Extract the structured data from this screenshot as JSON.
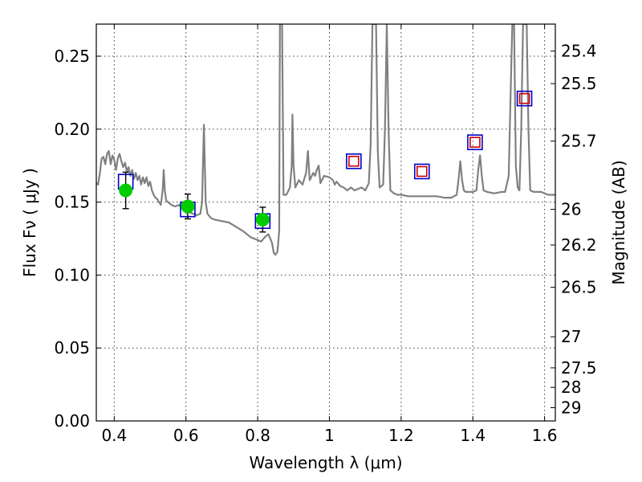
{
  "chart_data": {
    "type": "scatter",
    "xlabel": "Wavelength  λ (μm)",
    "ylabel": "Flux  Fν  ( μJy )",
    "ylabel_right": "Magnitude (AB)",
    "xlim": [
      0.35,
      1.63
    ],
    "ylim": [
      0.0,
      0.272
    ],
    "grid": true,
    "x_ticks": [
      {
        "value": 0.4,
        "label": "0.4"
      },
      {
        "value": 0.6,
        "label": "0.6"
      },
      {
        "value": 0.8,
        "label": "0.8"
      },
      {
        "value": 1.0,
        "label": "1"
      },
      {
        "value": 1.2,
        "label": "1.2"
      },
      {
        "value": 1.4,
        "label": "1.4"
      },
      {
        "value": 1.6,
        "label": "1.6"
      }
    ],
    "y_ticks": [
      {
        "value": 0.0,
        "label": "0.00"
      },
      {
        "value": 0.05,
        "label": "0.05"
      },
      {
        "value": 0.1,
        "label": "0.10"
      },
      {
        "value": 0.15,
        "label": "0.15"
      },
      {
        "value": 0.2,
        "label": "0.20"
      },
      {
        "value": 0.25,
        "label": "0.25"
      }
    ],
    "mag_ticks": [
      {
        "value": 0.2535,
        "label": "25.4"
      },
      {
        "value": 0.2312,
        "label": "25.5"
      },
      {
        "value": 0.1918,
        "label": "25.7"
      },
      {
        "value": 0.145,
        "label": "26"
      },
      {
        "value": 0.1206,
        "label": "26.2"
      },
      {
        "value": 0.0916,
        "label": "26.5"
      },
      {
        "value": 0.0577,
        "label": "27"
      },
      {
        "value": 0.0364,
        "label": "27.5"
      },
      {
        "value": 0.023,
        "label": "28"
      },
      {
        "value": 0.0091,
        "label": "29"
      }
    ],
    "series": [
      {
        "style": "line",
        "color": "#808080",
        "points": [
          [
            0.35,
            0.163
          ],
          [
            0.355,
            0.162
          ],
          [
            0.36,
            0.17
          ],
          [
            0.365,
            0.18
          ],
          [
            0.37,
            0.181
          ],
          [
            0.375,
            0.176
          ],
          [
            0.38,
            0.183
          ],
          [
            0.385,
            0.185
          ],
          [
            0.39,
            0.176
          ],
          [
            0.395,
            0.182
          ],
          [
            0.4,
            0.179
          ],
          [
            0.405,
            0.172
          ],
          [
            0.41,
            0.18
          ],
          [
            0.415,
            0.183
          ],
          [
            0.42,
            0.178
          ],
          [
            0.425,
            0.174
          ],
          [
            0.43,
            0.177
          ],
          [
            0.435,
            0.171
          ],
          [
            0.44,
            0.174
          ],
          [
            0.445,
            0.168
          ],
          [
            0.45,
            0.172
          ],
          [
            0.455,
            0.166
          ],
          [
            0.46,
            0.17
          ],
          [
            0.465,
            0.165
          ],
          [
            0.47,
            0.168
          ],
          [
            0.475,
            0.162
          ],
          [
            0.48,
            0.167
          ],
          [
            0.485,
            0.163
          ],
          [
            0.49,
            0.167
          ],
          [
            0.495,
            0.161
          ],
          [
            0.5,
            0.164
          ],
          [
            0.505,
            0.158
          ],
          [
            0.51,
            0.155
          ],
          [
            0.515,
            0.153
          ],
          [
            0.52,
            0.152
          ],
          [
            0.525,
            0.15
          ],
          [
            0.53,
            0.148
          ],
          [
            0.535,
            0.158
          ],
          [
            0.538,
            0.172
          ],
          [
            0.541,
            0.158
          ],
          [
            0.545,
            0.151
          ],
          [
            0.55,
            0.15
          ],
          [
            0.56,
            0.148
          ],
          [
            0.57,
            0.147
          ],
          [
            0.58,
            0.148
          ],
          [
            0.59,
            0.146
          ],
          [
            0.6,
            0.144
          ],
          [
            0.61,
            0.143
          ],
          [
            0.62,
            0.142
          ],
          [
            0.63,
            0.141
          ],
          [
            0.64,
            0.142
          ],
          [
            0.645,
            0.15
          ],
          [
            0.65,
            0.203
          ],
          [
            0.655,
            0.15
          ],
          [
            0.66,
            0.142
          ],
          [
            0.67,
            0.139
          ],
          [
            0.68,
            0.138
          ],
          [
            0.7,
            0.137
          ],
          [
            0.72,
            0.136
          ],
          [
            0.74,
            0.133
          ],
          [
            0.76,
            0.13
          ],
          [
            0.78,
            0.126
          ],
          [
            0.79,
            0.125
          ],
          [
            0.8,
            0.124
          ],
          [
            0.81,
            0.123
          ],
          [
            0.82,
            0.126
          ],
          [
            0.83,
            0.128
          ],
          [
            0.84,
            0.122
          ],
          [
            0.845,
            0.115
          ],
          [
            0.85,
            0.114
          ],
          [
            0.855,
            0.116
          ],
          [
            0.86,
            0.13
          ],
          [
            0.862,
            0.272
          ],
          [
            0.868,
            0.272
          ],
          [
            0.872,
            0.155
          ],
          [
            0.88,
            0.155
          ],
          [
            0.89,
            0.16
          ],
          [
            0.895,
            0.175
          ],
          [
            0.897,
            0.21
          ],
          [
            0.9,
            0.175
          ],
          [
            0.905,
            0.16
          ],
          [
            0.915,
            0.165
          ],
          [
            0.925,
            0.162
          ],
          [
            0.935,
            0.17
          ],
          [
            0.94,
            0.185
          ],
          [
            0.945,
            0.165
          ],
          [
            0.955,
            0.17
          ],
          [
            0.96,
            0.168
          ],
          [
            0.965,
            0.172
          ],
          [
            0.97,
            0.175
          ],
          [
            0.975,
            0.163
          ],
          [
            0.985,
            0.168
          ],
          [
            1.0,
            0.167
          ],
          [
            1.01,
            0.165
          ],
          [
            1.015,
            0.162
          ],
          [
            1.02,
            0.164
          ],
          [
            1.03,
            0.161
          ],
          [
            1.04,
            0.16
          ],
          [
            1.05,
            0.158
          ],
          [
            1.06,
            0.16
          ],
          [
            1.07,
            0.158
          ],
          [
            1.08,
            0.159
          ],
          [
            1.09,
            0.16
          ],
          [
            1.1,
            0.158
          ],
          [
            1.11,
            0.163
          ],
          [
            1.115,
            0.19
          ],
          [
            1.12,
            0.272
          ],
          [
            1.13,
            0.272
          ],
          [
            1.135,
            0.185
          ],
          [
            1.14,
            0.16
          ],
          [
            1.15,
            0.162
          ],
          [
            1.155,
            0.2
          ],
          [
            1.16,
            0.272
          ],
          [
            1.165,
            0.2
          ],
          [
            1.17,
            0.158
          ],
          [
            1.18,
            0.156
          ],
          [
            1.19,
            0.155
          ],
          [
            1.2,
            0.155
          ],
          [
            1.22,
            0.154
          ],
          [
            1.24,
            0.154
          ],
          [
            1.26,
            0.154
          ],
          [
            1.28,
            0.154
          ],
          [
            1.3,
            0.154
          ],
          [
            1.32,
            0.153
          ],
          [
            1.34,
            0.153
          ],
          [
            1.355,
            0.155
          ],
          [
            1.36,
            0.165
          ],
          [
            1.365,
            0.178
          ],
          [
            1.37,
            0.165
          ],
          [
            1.375,
            0.158
          ],
          [
            1.38,
            0.157
          ],
          [
            1.39,
            0.157
          ],
          [
            1.4,
            0.157
          ],
          [
            1.41,
            0.158
          ],
          [
            1.415,
            0.172
          ],
          [
            1.42,
            0.182
          ],
          [
            1.425,
            0.168
          ],
          [
            1.43,
            0.158
          ],
          [
            1.44,
            0.157
          ],
          [
            1.46,
            0.156
          ],
          [
            1.48,
            0.157
          ],
          [
            1.49,
            0.157
          ],
          [
            1.5,
            0.168
          ],
          [
            1.505,
            0.22
          ],
          [
            1.51,
            0.272
          ],
          [
            1.515,
            0.272
          ],
          [
            1.52,
            0.175
          ],
          [
            1.525,
            0.16
          ],
          [
            1.53,
            0.158
          ],
          [
            1.535,
            0.2
          ],
          [
            1.54,
            0.272
          ],
          [
            1.545,
            0.272
          ],
          [
            1.55,
            0.272
          ],
          [
            1.555,
            0.2
          ],
          [
            1.56,
            0.158
          ],
          [
            1.57,
            0.157
          ],
          [
            1.58,
            0.157
          ],
          [
            1.59,
            0.157
          ],
          [
            1.6,
            0.156
          ],
          [
            1.61,
            0.155
          ],
          [
            1.62,
            0.155
          ],
          [
            1.63,
            0.155
          ]
        ]
      },
      {
        "style": "open-square",
        "color": "#0000cc",
        "points": [
          [
            0.432,
            0.164
          ],
          [
            0.605,
            0.145
          ],
          [
            0.814,
            0.137
          ],
          [
            1.068,
            0.178
          ],
          [
            1.258,
            0.171
          ],
          [
            1.406,
            0.191
          ],
          [
            1.544,
            0.221
          ]
        ]
      },
      {
        "style": "open-square",
        "color": "#cc0000",
        "points": [
          [
            1.068,
            0.178
          ],
          [
            1.258,
            0.171
          ],
          [
            1.406,
            0.191
          ],
          [
            1.544,
            0.221
          ]
        ]
      },
      {
        "style": "filled-circle",
        "color": "#00cc00",
        "errors": [
          0.0125,
          0.0085,
          0.0085
        ],
        "points": [
          [
            0.432,
            0.158
          ],
          [
            0.605,
            0.147
          ],
          [
            0.814,
            0.138
          ]
        ]
      }
    ]
  }
}
